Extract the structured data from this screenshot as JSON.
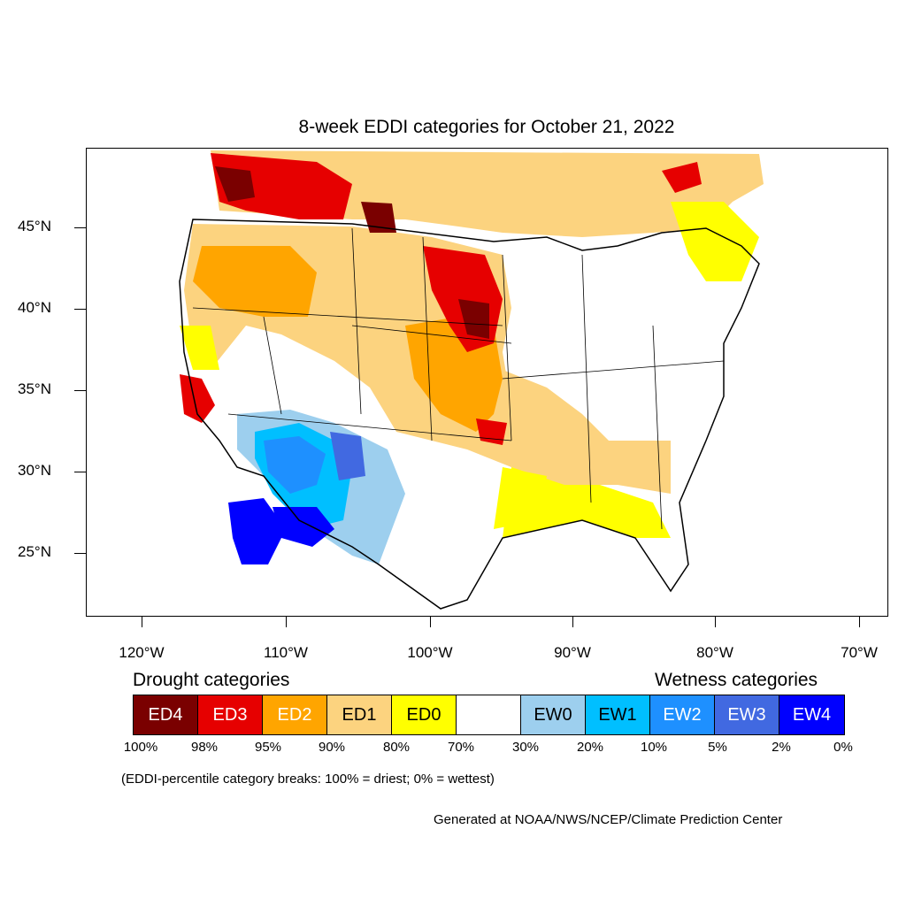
{
  "title": "8-week EDDI categories for October 21, 2022",
  "y_axis_labels": [
    "45°N",
    "40°N",
    "35°N",
    "30°N",
    "25°N"
  ],
  "x_axis_labels": [
    "120°W",
    "110°W",
    "100°W",
    "90°W",
    "80°W",
    "70°W"
  ],
  "legend": {
    "drought_heading": "Drought categories",
    "wetness_heading": "Wetness categories",
    "categories": [
      {
        "label": "ED4",
        "color": "#7a0000",
        "text_color": "#ffffff"
      },
      {
        "label": "ED3",
        "color": "#e60000",
        "text_color": "#ffffff"
      },
      {
        "label": "ED2",
        "color": "#ffa500",
        "text_color": "#ffffff"
      },
      {
        "label": "ED1",
        "color": "#fcd37f",
        "text_color": "#000000"
      },
      {
        "label": "ED0",
        "color": "#ffff00",
        "text_color": "#000000"
      },
      {
        "label": "",
        "color": "#ffffff",
        "text_color": "#000000"
      },
      {
        "label": "EW0",
        "color": "#9dcfee",
        "text_color": "#000000"
      },
      {
        "label": "EW1",
        "color": "#00bfff",
        "text_color": "#000000"
      },
      {
        "label": "EW2",
        "color": "#1e90ff",
        "text_color": "#ffffff"
      },
      {
        "label": "EW3",
        "color": "#4169e1",
        "text_color": "#ffffff"
      },
      {
        "label": "EW4",
        "color": "#0000ff",
        "text_color": "#ffffff"
      }
    ],
    "percent_breaks": [
      "100%",
      "98%",
      "95%",
      "90%",
      "80%",
      "70%",
      "30%",
      "20%",
      "10%",
      "5%",
      "2%",
      "0%"
    ]
  },
  "note": "(EDDI-percentile category breaks: 100% = driest; 0% = wettest)",
  "credit": "Generated at NOAA/NWS/NCEP/Climate Prediction Center"
}
